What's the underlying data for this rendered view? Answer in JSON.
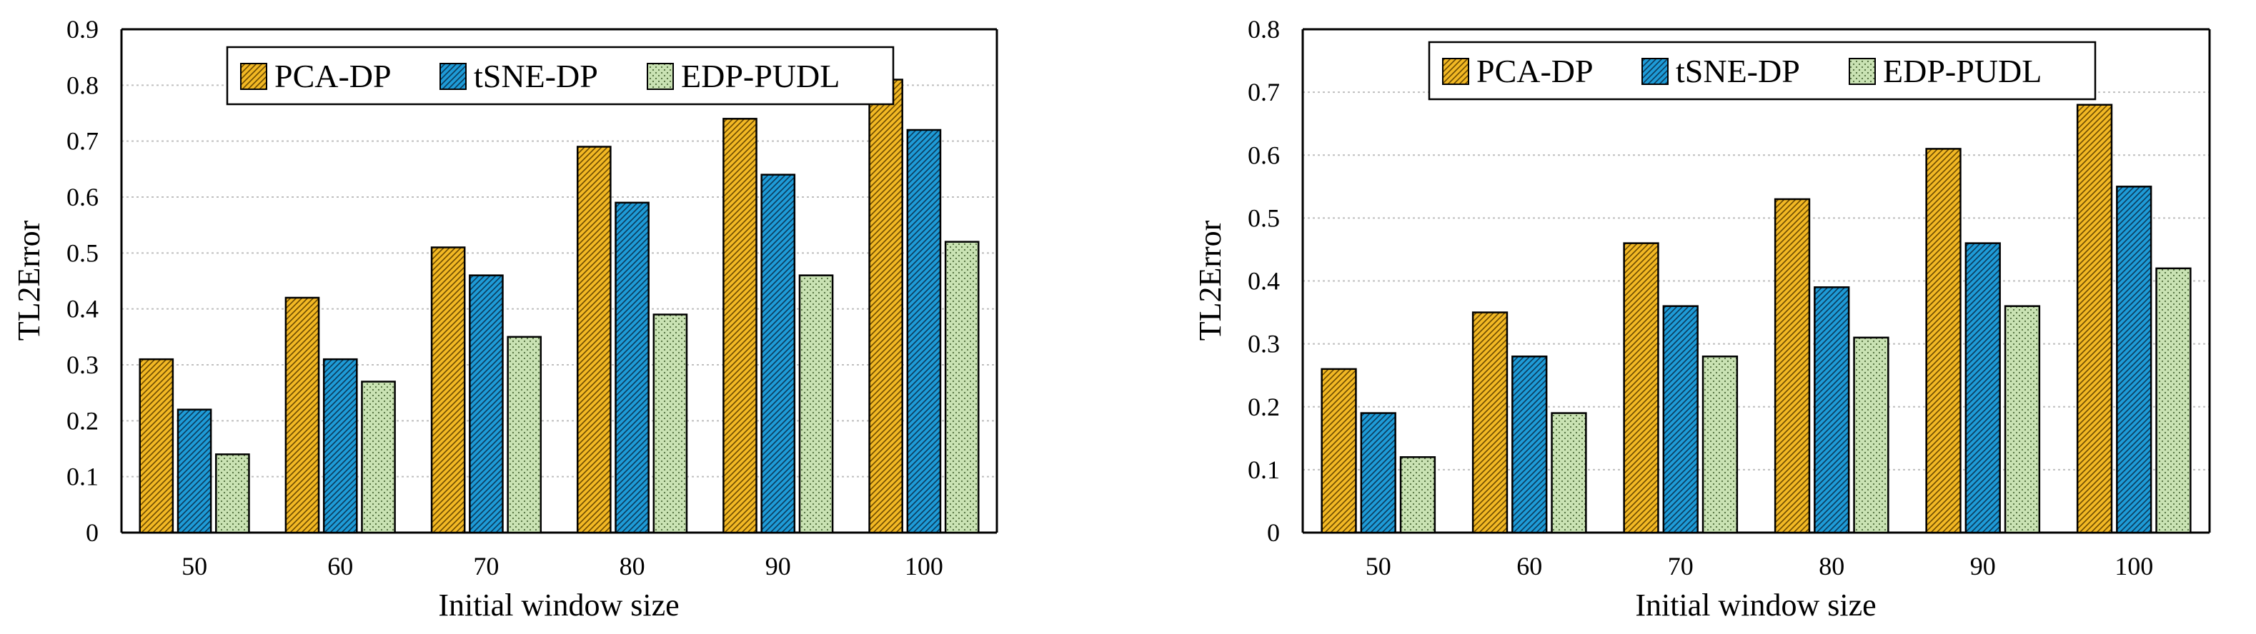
{
  "colors": {
    "pca": "#F2B824",
    "tsne": "#1E9BD7",
    "edp": "#C9E2B3",
    "grid": "#BFBFBF",
    "axis": "#000000"
  },
  "chart_data": [
    {
      "type": "bar",
      "title": "",
      "xlabel": "Initial window size",
      "ylabel": "TL2Error",
      "categories": [
        "50",
        "60",
        "70",
        "80",
        "90",
        "100"
      ],
      "ylim": [
        0,
        0.9
      ],
      "yticks": [
        "0",
        "0.1",
        "0.2",
        "0.3",
        "0.4",
        "0.5",
        "0.6",
        "0.7",
        "0.8",
        "0.9"
      ],
      "grid": true,
      "legend": "top-center",
      "series": [
        {
          "name": "PCA-DP",
          "values": [
            0.31,
            0.42,
            0.51,
            0.69,
            0.74,
            0.81
          ]
        },
        {
          "name": "tSNE-DP",
          "values": [
            0.22,
            0.31,
            0.46,
            0.59,
            0.64,
            0.72
          ]
        },
        {
          "name": "EDP-PUDL",
          "values": [
            0.14,
            0.27,
            0.35,
            0.39,
            0.46,
            0.52
          ]
        }
      ]
    },
    {
      "type": "bar",
      "title": "",
      "xlabel": "Initial window size",
      "ylabel": "TL2Error",
      "categories": [
        "50",
        "60",
        "70",
        "80",
        "90",
        "100"
      ],
      "ylim": [
        0,
        0.8
      ],
      "yticks": [
        "0",
        "0.1",
        "0.2",
        "0.3",
        "0.4",
        "0.5",
        "0.6",
        "0.7",
        "0.8"
      ],
      "grid": true,
      "legend": "top-center",
      "series": [
        {
          "name": "PCA-DP",
          "values": [
            0.26,
            0.35,
            0.46,
            0.53,
            0.61,
            0.68
          ]
        },
        {
          "name": "tSNE-DP",
          "values": [
            0.19,
            0.28,
            0.36,
            0.39,
            0.46,
            0.55
          ]
        },
        {
          "name": "EDP-PUDL",
          "values": [
            0.12,
            0.19,
            0.28,
            0.31,
            0.36,
            0.42
          ]
        }
      ]
    }
  ]
}
